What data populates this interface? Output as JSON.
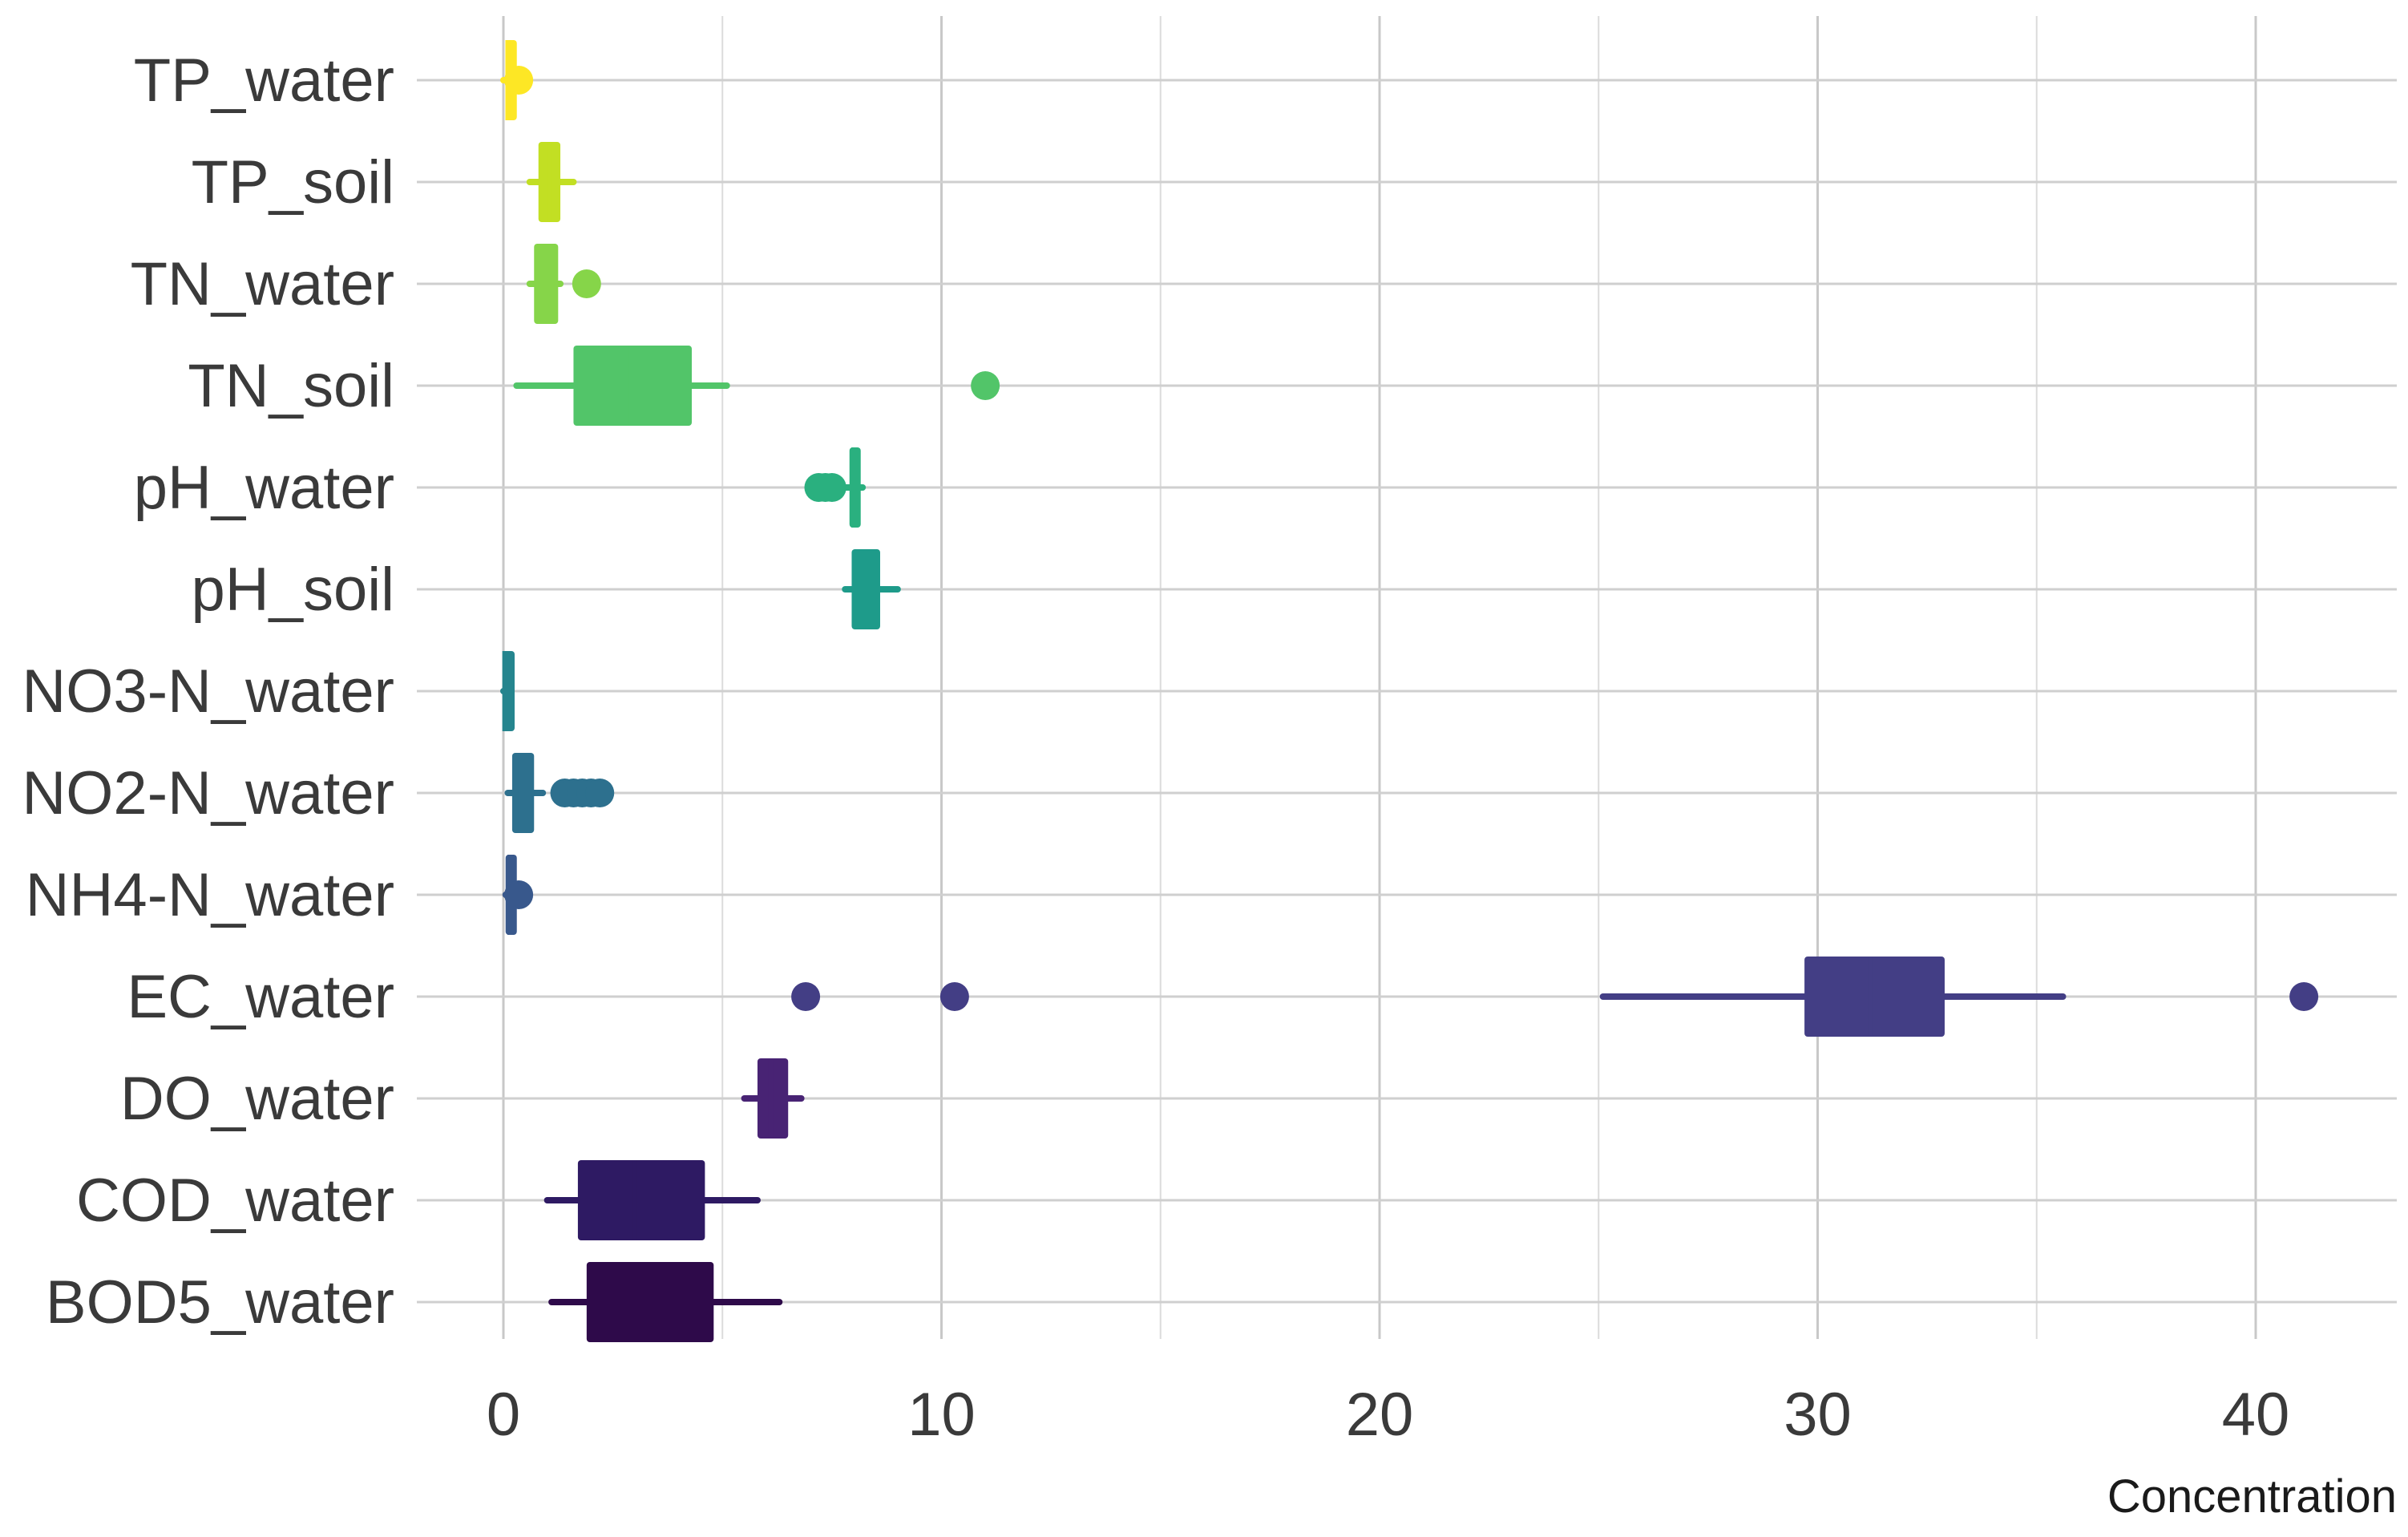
{
  "chart_data": {
    "type": "boxplot",
    "orientation": "horizontal",
    "title": "",
    "xlabel": "Concentration",
    "ylabel": "",
    "xlim": [
      -1.9,
      43.0
    ],
    "xticks": [
      0,
      10,
      20,
      30,
      40
    ],
    "xtick_labels": [
      "0",
      "10",
      "20",
      "30",
      "40"
    ],
    "grid": true,
    "legend": "none",
    "categories": [
      "TP_water",
      "TP_soil",
      "TN_water",
      "TN_soil",
      "pH_water",
      "pH_soil",
      "NO3-N_water",
      "NO2-N_water",
      "NH4-N_water",
      "EC_water",
      "DO_water",
      "COD_water",
      "BOD5_water"
    ],
    "series": [
      {
        "name": "TP_water",
        "color": "#fde725",
        "whisker_low": 0.0,
        "q1": 0.05,
        "median": 0.1,
        "q3": 0.18,
        "whisker_high": 0.25,
        "outliers": [
          0.35
        ]
      },
      {
        "name": "TP_soil",
        "color": "#c2df23",
        "whisker_low": 0.6,
        "q1": 0.8,
        "median": 1.05,
        "q3": 1.3,
        "whisker_high": 1.6,
        "outliers": []
      },
      {
        "name": "TN_water",
        "color": "#86d549",
        "whisker_low": 0.6,
        "q1": 0.7,
        "median": 0.9,
        "q3": 1.25,
        "whisker_high": 1.3,
        "outliers": [
          1.9
        ]
      },
      {
        "name": "TN_soil",
        "color": "#52c569",
        "whisker_low": 0.3,
        "q1": 1.6,
        "median": 2.8,
        "q3": 4.3,
        "whisker_high": 5.1,
        "outliers": [
          11.0
        ]
      },
      {
        "name": "pH_water",
        "color": "#2ab07f",
        "whisker_low": 7.6,
        "q1": 7.9,
        "median": 8.0,
        "q3": 8.15,
        "whisker_high": 8.2,
        "outliers": [
          7.2,
          7.35,
          7.5
        ]
      },
      {
        "name": "pH_soil",
        "color": "#1e9b8a",
        "whisker_low": 7.8,
        "q1": 7.95,
        "median": 8.2,
        "q3": 8.6,
        "whisker_high": 9.0,
        "outliers": []
      },
      {
        "name": "NO3-N_water",
        "color": "#25858e",
        "whisker_low": 0.0,
        "q1": 0.0,
        "median": 0.03,
        "q3": 0.12,
        "whisker_high": 0.15,
        "outliers": []
      },
      {
        "name": "NO2-N_water",
        "color": "#2d708e",
        "whisker_low": 0.1,
        "q1": 0.2,
        "median": 0.4,
        "q3": 0.7,
        "whisker_high": 0.9,
        "outliers": [
          1.4,
          1.6,
          1.8,
          2.0,
          2.2
        ]
      },
      {
        "name": "NH4-N_water",
        "color": "#38588c",
        "whisker_low": 0.05,
        "q1": 0.05,
        "median": 0.15,
        "q3": 0.25,
        "whisker_high": 0.3,
        "outliers": [
          0.35
        ]
      },
      {
        "name": "EC_water",
        "color": "#433e85",
        "whisker_low": 25.1,
        "q1": 29.7,
        "median": 31.2,
        "q3": 32.9,
        "whisker_high": 35.6,
        "outliers": [
          6.9,
          10.3,
          41.1
        ]
      },
      {
        "name": "DO_water",
        "color": "#482374",
        "whisker_low": 5.5,
        "q1": 5.8,
        "median": 6.1,
        "q3": 6.5,
        "whisker_high": 6.8,
        "outliers": []
      },
      {
        "name": "COD_water",
        "color": "#2e1a63",
        "whisker_low": 1.0,
        "q1": 1.7,
        "median": 3.0,
        "q3": 4.6,
        "whisker_high": 5.8,
        "outliers": []
      },
      {
        "name": "BOD5_water",
        "color": "#2e0a4a",
        "whisker_low": 1.1,
        "q1": 1.9,
        "median": 3.2,
        "q3": 4.8,
        "whisker_high": 6.3,
        "outliers": []
      }
    ]
  }
}
